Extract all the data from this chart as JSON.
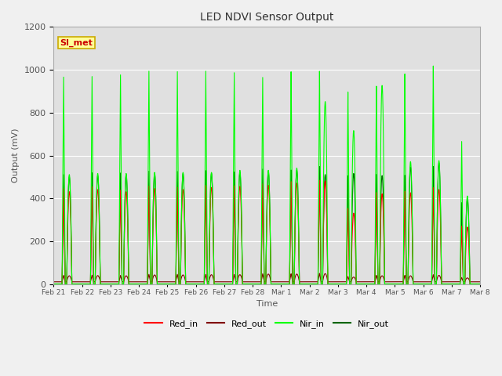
{
  "title": "LED NDVI Sensor Output",
  "xlabel": "Time",
  "ylabel": "Output (mV)",
  "ylim": [
    0,
    1200
  ],
  "n_days": 15,
  "legend_label": "SI_met",
  "legend_entries": [
    "Red_in",
    "Red_out",
    "Nir_in",
    "Nir_out"
  ],
  "line_colors": [
    "#ff0000",
    "#800000",
    "#00ff00",
    "#006400"
  ],
  "x_tick_labels": [
    "Feb 21",
    "Feb 22",
    "Feb 23",
    "Feb 24",
    "Feb 25",
    "Feb 26",
    "Feb 27",
    "Feb 28",
    "Mar 1",
    "Mar 2",
    "Mar 3",
    "Mar 4",
    "Mar 5",
    "Mar 6",
    "Mar 7",
    "Mar 8"
  ],
  "fig_bg_color": "#f0f0f0",
  "plot_bg_color": "#e0e0e0",
  "grid_color": "#ffffff",
  "annotation_bg": "#ffff99",
  "annotation_border": "#ccaa00",
  "annotation_text_color": "#cc0000",
  "nir_in_peaks": [
    965,
    970,
    980,
    1000,
    1000,
    1005,
    1000,
    980,
    1005,
    1005,
    905,
    930,
    985,
    1020,
    665
  ],
  "nir_out_peaks": [
    510,
    520,
    520,
    530,
    530,
    535,
    530,
    545,
    540,
    555,
    510,
    515,
    510,
    550,
    380
  ],
  "red_in_peaks": [
    445,
    455,
    440,
    460,
    455,
    465,
    465,
    475,
    485,
    490,
    355,
    430,
    435,
    450,
    270
  ],
  "red_out_peaks": [
    30,
    31,
    30,
    35,
    35,
    35,
    35,
    38,
    38,
    40,
    25,
    30,
    30,
    33,
    20
  ],
  "nir_in_peaks2": [
    510,
    515,
    515,
    520,
    520,
    520,
    530,
    530,
    540,
    850,
    715,
    925,
    570,
    575,
    410
  ],
  "nir_out_peaks2": [
    500,
    505,
    510,
    515,
    515,
    515,
    520,
    525,
    530,
    510,
    515,
    505,
    545,
    565,
    395
  ],
  "red_in_peaks2": [
    430,
    440,
    430,
    445,
    440,
    450,
    455,
    460,
    470,
    480,
    330,
    420,
    425,
    440,
    265
  ],
  "red_out_peaks2": [
    28,
    29,
    28,
    32,
    32,
    33,
    33,
    36,
    36,
    38,
    22,
    28,
    28,
    30,
    18
  ]
}
